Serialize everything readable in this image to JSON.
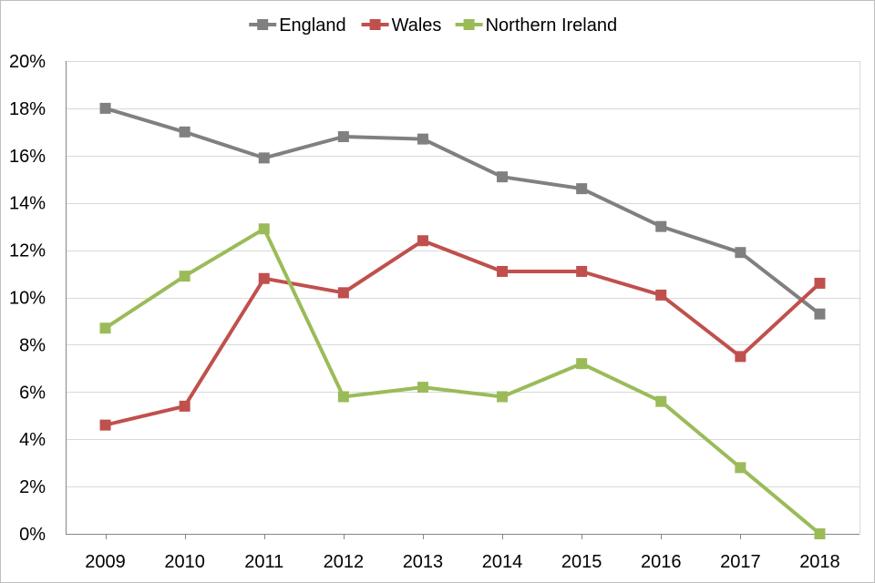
{
  "chart_data": {
    "type": "line",
    "title": "",
    "xlabel": "",
    "ylabel": "",
    "x": [
      "2009",
      "2010",
      "2011",
      "2012",
      "2013",
      "2014",
      "2015",
      "2016",
      "2017",
      "2018"
    ],
    "ylim": [
      0,
      20
    ],
    "yticks": [
      0,
      2,
      4,
      6,
      8,
      10,
      12,
      14,
      16,
      18,
      20
    ],
    "ytick_labels": [
      "0%",
      "2%",
      "4%",
      "6%",
      "8%",
      "10%",
      "12%",
      "14%",
      "16%",
      "18%",
      "20%"
    ],
    "grid": true,
    "legend": "top",
    "series": [
      {
        "name": "England",
        "color": "#808080",
        "marker": "square",
        "values": [
          18.0,
          17.0,
          15.9,
          16.8,
          16.7,
          15.1,
          14.6,
          13.0,
          11.9,
          9.3
        ]
      },
      {
        "name": "Wales",
        "color": "#c0504d",
        "marker": "square",
        "values": [
          4.6,
          5.4,
          10.8,
          10.2,
          12.4,
          11.1,
          11.1,
          10.1,
          7.5,
          10.6
        ]
      },
      {
        "name": "Northern Ireland",
        "color": "#9bbb59",
        "marker": "square",
        "values": [
          8.7,
          10.9,
          12.9,
          5.8,
          6.2,
          5.8,
          7.2,
          5.6,
          2.8,
          0.0
        ]
      }
    ]
  }
}
